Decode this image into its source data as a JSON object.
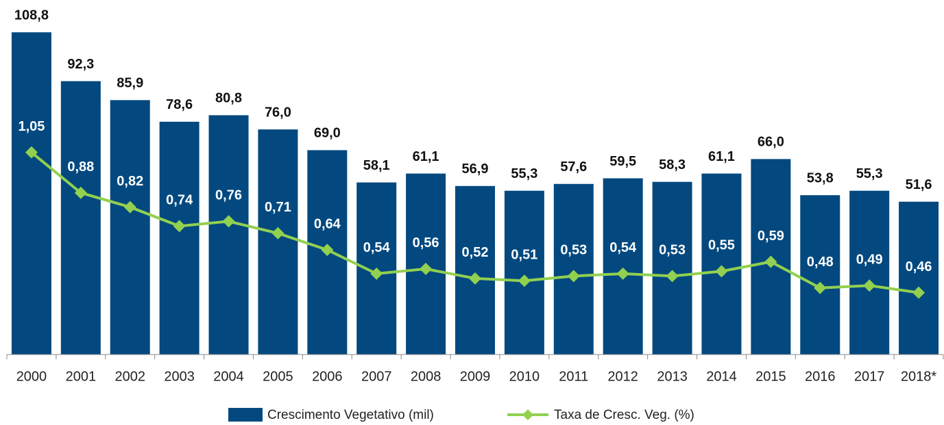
{
  "chart_data": {
    "type": "bar_line",
    "categories": [
      "2000",
      "2001",
      "2002",
      "2003",
      "2004",
      "2005",
      "2006",
      "2007",
      "2008",
      "2009",
      "2010",
      "2011",
      "2012",
      "2013",
      "2014",
      "2015",
      "2016",
      "2017",
      "2018*"
    ],
    "series": [
      {
        "name": "Crescimento Vegetativo (mil)",
        "type": "bar",
        "color": "#03497f",
        "axis": "y",
        "values": [
          108.8,
          92.3,
          85.9,
          78.6,
          80.8,
          76.0,
          69.0,
          58.1,
          61.1,
          56.9,
          55.3,
          57.6,
          59.5,
          58.3,
          61.1,
          66.0,
          53.8,
          55.3,
          51.6
        ],
        "value_labels": [
          "108,8",
          "92,3",
          "85,9",
          "78,6",
          "80,8",
          "76,0",
          "69,0",
          "58,1",
          "61,1",
          "56,9",
          "55,3",
          "57,6",
          "59,5",
          "58,3",
          "61,1",
          "66,0",
          "53,8",
          "55,3",
          "51,6"
        ]
      },
      {
        "name": "Taxa de Cresc. Veg. (%)",
        "type": "line",
        "color": "#92d050",
        "axis": "y2",
        "values": [
          1.05,
          0.88,
          0.82,
          0.74,
          0.76,
          0.71,
          0.64,
          0.54,
          0.56,
          0.52,
          0.51,
          0.53,
          0.54,
          0.53,
          0.55,
          0.59,
          0.48,
          0.49,
          0.46
        ],
        "value_labels": [
          "1,05",
          "0,88",
          "0,82",
          "0,74",
          "0,76",
          "0,71",
          "0,64",
          "0,54",
          "0,56",
          "0,52",
          "0,51",
          "0,53",
          "0,54",
          "0,53",
          "0,55",
          "0,59",
          "0,48",
          "0,49",
          "0,46"
        ]
      }
    ],
    "ylim": [
      0,
      110
    ],
    "y2lim": [
      0.2,
      1.57
    ],
    "legend": "bottom"
  }
}
